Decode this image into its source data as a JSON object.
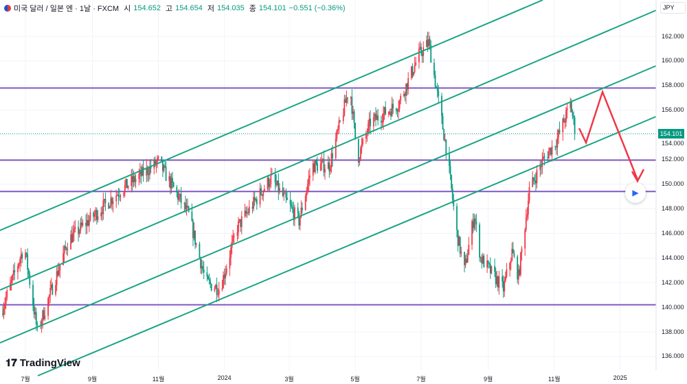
{
  "header": {
    "symbol": "미국 달러 / 일본 엔 · 1날 · FXCM",
    "o_label": "시",
    "o": "154.652",
    "h_label": "고",
    "h": "154.654",
    "l_label": "저",
    "l": "154.035",
    "c_label": "종",
    "c": "154.101",
    "change": "−0.551 (−0.36%)"
  },
  "currency": "JPY",
  "logo": "TradingView",
  "chart_data": {
    "type": "candlestick",
    "title": "미국 달러 / 일본 엔 · 1날 · FXCM",
    "ylim": [
      135,
      164.5
    ],
    "y_ticks": [
      "162.000",
      "160.000",
      "158.000",
      "156.000",
      "154.000",
      "152.000",
      "150.000",
      "148.000",
      "146.000",
      "144.000",
      "142.000",
      "140.000",
      "138.000",
      "136.000"
    ],
    "y_tick_values": [
      162,
      160,
      158,
      156,
      154,
      152,
      150,
      148,
      146,
      144,
      142,
      140,
      138,
      136
    ],
    "last_price": "154.101",
    "x_ticks": [
      "7월",
      "9월",
      "11월",
      "2024",
      "3월",
      "5월",
      "7월",
      "9월",
      "11월",
      "2025"
    ],
    "x_tick_days": [
      0,
      62,
      123,
      184,
      244,
      305,
      366,
      428,
      489,
      550
    ],
    "close_anchors_day_price": [
      [
        -23,
        139.5
      ],
      [
        -1,
        145
      ],
      [
        11,
        138
      ],
      [
        40,
        145.5
      ],
      [
        88,
        149.5
      ],
      [
        123,
        151.8
      ],
      [
        151,
        147.5
      ],
      [
        167,
        142
      ],
      [
        180,
        141.5
      ],
      [
        196,
        146.5
      ],
      [
        227,
        150.5
      ],
      [
        253,
        147
      ],
      [
        265,
        151.5
      ],
      [
        281,
        151.5
      ],
      [
        300,
        158
      ],
      [
        307,
        152
      ],
      [
        319,
        155
      ],
      [
        345,
        156.5
      ],
      [
        364,
        160.5
      ],
      [
        373,
        161.5
      ],
      [
        389,
        153
      ],
      [
        399,
        146
      ],
      [
        406,
        143
      ],
      [
        415,
        147.5
      ],
      [
        421,
        144
      ],
      [
        442,
        141.5
      ],
      [
        450,
        144.5
      ],
      [
        456,
        142.5
      ],
      [
        466,
        149.5
      ],
      [
        479,
        152
      ],
      [
        491,
        153.5
      ],
      [
        504,
        156.5
      ],
      [
        509,
        154.1
      ]
    ],
    "horizontal_levels": [
      157.8,
      151.95,
      149.4,
      140.2
    ],
    "colors": {
      "up": "#f23645",
      "down": "#089981",
      "level": "#7e57c2",
      "channel": "#1aa383",
      "arrow": "#f23645"
    }
  }
}
